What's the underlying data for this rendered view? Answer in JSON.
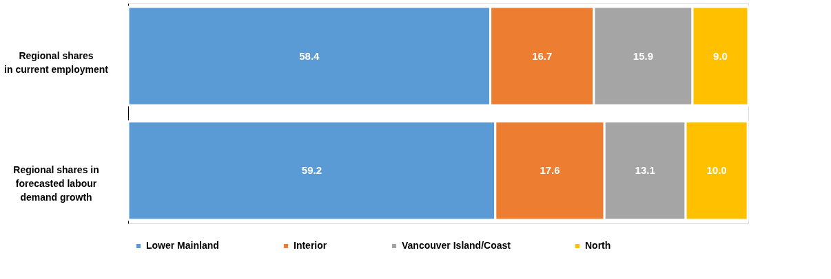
{
  "chart_data": {
    "type": "bar",
    "orientation": "horizontal",
    "stacked": true,
    "legend": "bottom",
    "tick_labels": "y",
    "categories": [
      "Regional shares\nin current employment",
      "Regional shares in\nforecasted labour\ndemand growth"
    ],
    "series": [
      {
        "name": "Lower Mainland",
        "color": "#5b9bd5",
        "values": [
          58.4,
          59.2
        ],
        "value_labels": [
          "58.4",
          "59.2"
        ]
      },
      {
        "name": "Interior",
        "color": "#ed7d31",
        "values": [
          16.7,
          17.6
        ],
        "value_labels": [
          "16.7",
          "17.6"
        ]
      },
      {
        "name": "Vancouver Island/Coast",
        "color": "#a5a5a5",
        "values": [
          15.9,
          13.1
        ],
        "value_labels": [
          "15.9",
          "13.1"
        ]
      },
      {
        "name": "North",
        "color": "#ffc000",
        "values": [
          9.0,
          10.0
        ],
        "value_labels": [
          "9.0",
          "10.0"
        ]
      }
    ]
  }
}
